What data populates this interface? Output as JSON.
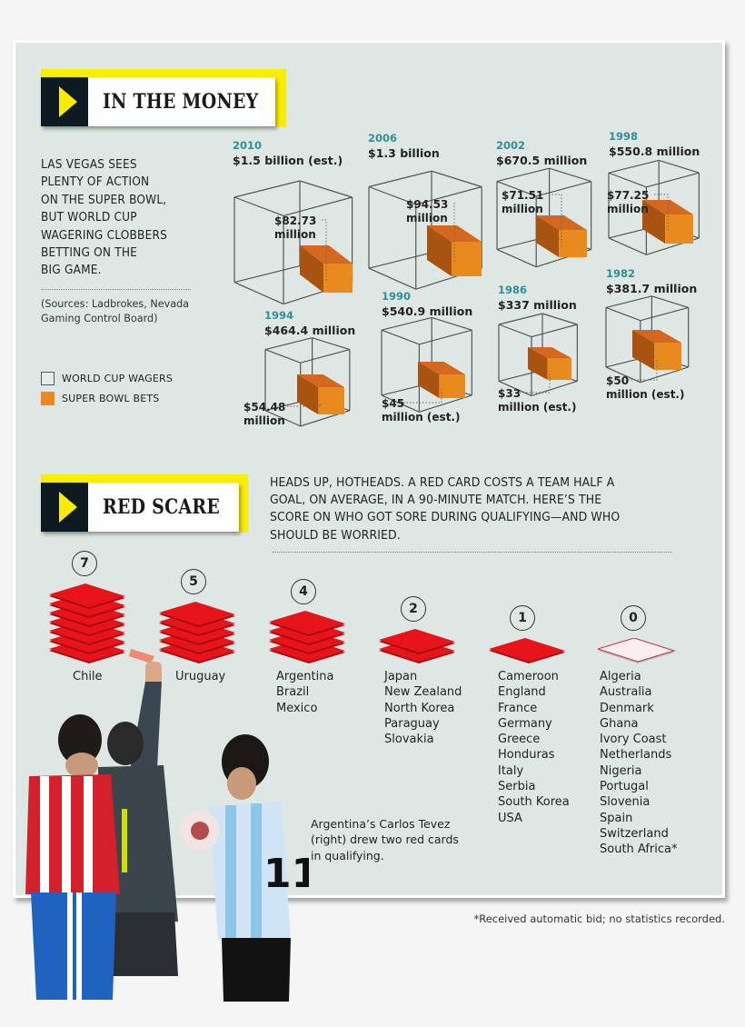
{
  "section1": {
    "title": "IN THE MONEY",
    "intro": "LAS VEGAS SEES PLENTY OF ACTION ON THE SUPER BOWL, BUT WORLD CUP WAGERING CLOBBERS BETTING ON THE BIG GAME.",
    "intro_lines": [
      "LAS VEGAS SEES",
      "PLENTY OF ACTION",
      "ON THE SUPER BOWL,",
      "BUT WORLD CUP",
      "WAGERING CLOBBERS",
      "BETTING ON THE",
      "BIG GAME."
    ],
    "sources_lines": [
      "(Sources: Ladbrokes, Nevada",
      "Gaming Control Board)"
    ],
    "legend": [
      {
        "label": "WORLD CUP WAGERS",
        "color": "#e6ecea"
      },
      {
        "label": "SUPER BOWL BETS",
        "color": "#e88a1e"
      }
    ]
  },
  "section2": {
    "title": "RED SCARE",
    "intro_lines": [
      "HEADS UP, HOTHEADS. A RED CARD COSTS A TEAM HALF A",
      "GOAL, ON AVERAGE, IN A 90-MINUTE MATCH. HERE’S THE",
      "SCORE ON WHO GOT SORE DURING QUALIFYING—AND WHO",
      "SHOULD BE WORRIED."
    ],
    "caption_lines": [
      "Argentina’s Carlos Tevez",
      "(right) drew two red cards",
      "in qualifying."
    ],
    "footnote": "*Received automatic bid; no statistics recorded."
  },
  "colors": {
    "panel": "#dfe7e4",
    "banner_yellow": "#fbec00",
    "banner_navy": "#0e1a22",
    "year_teal": "#2f8f94",
    "super_bowl_orange": "#e88a1e",
    "red_card": "#e8141c"
  },
  "chart_data": [
    {
      "type": "bar",
      "title": "IN THE MONEY",
      "subtitle": "World Cup wagers vs. Super Bowl bets (Las Vegas)",
      "categories": [
        "2010",
        "2006",
        "2002",
        "1998",
        "1994",
        "1990",
        "1986",
        "1982"
      ],
      "series": [
        {
          "name": "WORLD CUP WAGERS",
          "unit": "USD",
          "values": [
            1500000000,
            1300000000,
            670500000,
            550800000,
            464400000,
            540900000,
            337000000,
            381700000
          ],
          "labels": [
            "$1.5 billion (est.)",
            "$1.3 billion",
            "$670.5 million",
            "$550.8 million",
            "$464.4 million",
            "$540.9 million",
            "$337 million",
            "$381.7 million"
          ]
        },
        {
          "name": "SUPER BOWL BETS",
          "unit": "USD",
          "values": [
            82730000,
            94530000,
            71510000,
            77250000,
            54480000,
            45000000,
            33000000,
            50000000
          ],
          "labels": [
            "$82.73 million",
            "$94.53 million",
            "$71.51 million",
            "$77.25 million",
            "$54.48 million",
            "$45 million (est.)",
            "$33 million (est.)",
            "$50 million (est.)"
          ]
        }
      ],
      "legend_position": "left",
      "sources": "Ladbrokes, Nevada Gaming Control Board"
    },
    {
      "type": "bar",
      "title": "RED SCARE",
      "subtitle": "Red cards drawn during World Cup qualifying",
      "categories": [
        "7",
        "5",
        "4",
        "2",
        "1",
        "0"
      ],
      "values": [
        7,
        5,
        4,
        2,
        1,
        0
      ],
      "groups": [
        {
          "count": 7,
          "countries": [
            "Chile"
          ]
        },
        {
          "count": 5,
          "countries": [
            "Uruguay"
          ]
        },
        {
          "count": 4,
          "countries": [
            "Argentina",
            "Brazil",
            "Mexico"
          ]
        },
        {
          "count": 2,
          "countries": [
            "Japan",
            "New Zealand",
            "North Korea",
            "Paraguay",
            "Slovakia"
          ]
        },
        {
          "count": 1,
          "countries": [
            "Cameroon",
            "England",
            "France",
            "Germany",
            "Greece",
            "Honduras",
            "Italy",
            "Serbia",
            "South Korea",
            "USA"
          ]
        },
        {
          "count": 0,
          "countries": [
            "Algeria",
            "Australia",
            "Denmark",
            "Ghana",
            "Ivory Coast",
            "Netherlands",
            "Nigeria",
            "Portugal",
            "Slovenia",
            "Spain",
            "Switzerland",
            "South Africa*"
          ]
        }
      ]
    }
  ],
  "cubes": [
    {
      "year": "2010",
      "wc": "$1.5 billion (est.)",
      "sb1": "$82.73",
      "sb2": "million"
    },
    {
      "year": "2006",
      "wc": "$1.3 billion",
      "sb1": "$94.53",
      "sb2": "million"
    },
    {
      "year": "2002",
      "wc": "$670.5 million",
      "sb1": "$71.51",
      "sb2": "million"
    },
    {
      "year": "1998",
      "wc": "$550.8 million",
      "sb1": "$77.25",
      "sb2": "million"
    },
    {
      "year": "1994",
      "wc": "$464.4 million",
      "sb1": "$54.48",
      "sb2": "million"
    },
    {
      "year": "1990",
      "wc": "$540.9 million",
      "sb1": "$45",
      "sb2": "million (est.)"
    },
    {
      "year": "1986",
      "wc": "$337 million",
      "sb1": "$33",
      "sb2": "million (est.)"
    },
    {
      "year": "1982",
      "wc": "$381.7 million",
      "sb1": "$50",
      "sb2": "million (est.)"
    }
  ],
  "red_groups": [
    {
      "count": "7",
      "countries": [
        "Chile"
      ]
    },
    {
      "count": "5",
      "countries": [
        "Uruguay"
      ]
    },
    {
      "count": "4",
      "countries": [
        "Argentina",
        "Brazil",
        "Mexico"
      ]
    },
    {
      "count": "2",
      "countries": [
        "Japan",
        "New Zealand",
        "North Korea",
        "Paraguay",
        "Slovakia"
      ]
    },
    {
      "count": "1",
      "countries": [
        "Cameroon",
        "England",
        "France",
        "Germany",
        "Greece",
        "Honduras",
        "Italy",
        "Serbia",
        "South Korea",
        "USA"
      ]
    },
    {
      "count": "0",
      "countries": [
        "Algeria",
        "Australia",
        "Denmark",
        "Ghana",
        "Ivory Coast",
        "Netherlands",
        "Nigeria",
        "Portugal",
        "Slovenia",
        "Spain",
        "Switzerland",
        "South Africa*"
      ]
    }
  ]
}
